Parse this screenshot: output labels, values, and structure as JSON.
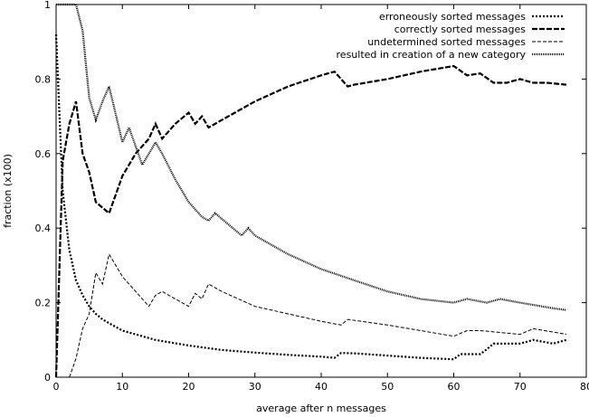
{
  "chart_data": {
    "type": "line",
    "xlabel": "average after n messages",
    "ylabel": "fraction (x100)",
    "xlim": [
      0,
      80
    ],
    "ylim": [
      0,
      1
    ],
    "xticks": [
      0,
      10,
      20,
      30,
      40,
      50,
      60,
      70,
      80
    ],
    "yticks": [
      0,
      0.2,
      0.4,
      0.6,
      0.8,
      1
    ],
    "ytick_labels": [
      "0",
      "0.2",
      "0.4",
      "0.6",
      "0.8",
      "1"
    ],
    "grid": false,
    "legend": "top-right",
    "series": [
      {
        "name": "erroneously sorted messages",
        "x": [
          0,
          1,
          2,
          3,
          4,
          5,
          6,
          7,
          8,
          10,
          12,
          15,
          20,
          25,
          30,
          35,
          40,
          42,
          43,
          45,
          50,
          55,
          60,
          61,
          62,
          64,
          65,
          66,
          70,
          72,
          75,
          77
        ],
        "y": [
          0.92,
          0.5,
          0.34,
          0.26,
          0.22,
          0.19,
          0.17,
          0.155,
          0.145,
          0.125,
          0.115,
          0.1,
          0.085,
          0.073,
          0.066,
          0.06,
          0.055,
          0.052,
          0.065,
          0.064,
          0.058,
          0.052,
          0.048,
          0.062,
          0.062,
          0.062,
          0.075,
          0.09,
          0.09,
          0.1,
          0.09,
          0.1
        ]
      },
      {
        "name": "correctly sorted messages",
        "x": [
          0,
          1,
          2,
          3,
          4,
          5,
          6,
          8,
          10,
          12,
          14,
          15,
          16,
          18,
          20,
          21,
          22,
          23,
          25,
          30,
          35,
          40,
          42,
          44,
          45,
          50,
          55,
          60,
          62,
          64,
          66,
          68,
          70,
          72,
          74,
          77
        ],
        "y": [
          0,
          0.58,
          0.68,
          0.74,
          0.6,
          0.55,
          0.47,
          0.44,
          0.54,
          0.6,
          0.64,
          0.68,
          0.64,
          0.68,
          0.71,
          0.68,
          0.7,
          0.67,
          0.69,
          0.74,
          0.78,
          0.81,
          0.82,
          0.78,
          0.785,
          0.8,
          0.82,
          0.835,
          0.81,
          0.815,
          0.79,
          0.79,
          0.8,
          0.79,
          0.79,
          0.785
        ]
      },
      {
        "name": "undetermined sorted messages",
        "x": [
          2,
          3,
          4,
          5,
          6,
          7,
          8,
          10,
          12,
          14,
          15,
          16,
          18,
          20,
          21,
          22,
          23,
          25,
          30,
          40,
          43,
          44,
          50,
          60,
          62,
          64,
          70,
          72,
          77
        ],
        "y": [
          0,
          0.05,
          0.13,
          0.17,
          0.28,
          0.25,
          0.33,
          0.27,
          0.23,
          0.19,
          0.22,
          0.23,
          0.21,
          0.19,
          0.225,
          0.21,
          0.25,
          0.23,
          0.19,
          0.15,
          0.14,
          0.155,
          0.14,
          0.11,
          0.125,
          0.125,
          0.115,
          0.13,
          0.115
        ]
      },
      {
        "name": "resulted in creation of a new category",
        "x": [
          0,
          1,
          2,
          3,
          4,
          5,
          6,
          7,
          8,
          10,
          11,
          12,
          13,
          14,
          15,
          16,
          18,
          20,
          22,
          23,
          24,
          26,
          28,
          29,
          30,
          35,
          40,
          45,
          50,
          55,
          60,
          62,
          65,
          67,
          70,
          75,
          77
        ],
        "y": [
          1.0,
          1.0,
          1.0,
          1.0,
          0.93,
          0.75,
          0.69,
          0.74,
          0.78,
          0.63,
          0.67,
          0.62,
          0.57,
          0.6,
          0.63,
          0.6,
          0.53,
          0.47,
          0.43,
          0.42,
          0.44,
          0.41,
          0.38,
          0.4,
          0.38,
          0.33,
          0.29,
          0.26,
          0.23,
          0.21,
          0.2,
          0.21,
          0.2,
          0.21,
          0.2,
          0.185,
          0.18
        ]
      }
    ]
  }
}
